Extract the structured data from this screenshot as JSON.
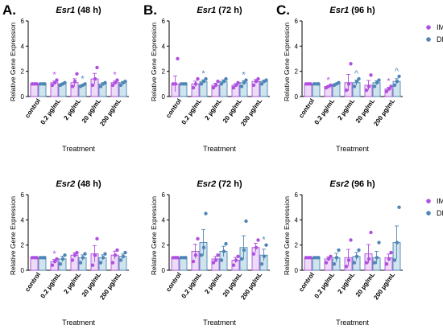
{
  "chart_data": [
    {
      "type": "bar",
      "panel_letter": "A.",
      "gene": "Esr1",
      "time": "(48 h)",
      "categories": [
        "control",
        "0.2 µg/mL",
        "2 µg/mL",
        "20 µg/mL",
        "200 µg/mL"
      ],
      "xlabel": "Treatment",
      "ylabel": "Relative Gene Expression",
      "ylim": [
        0,
        6
      ],
      "yticks": [
        0,
        2,
        4,
        6
      ],
      "series": [
        {
          "name": "IMI",
          "values": [
            1.0,
            1.1,
            1.1,
            1.4,
            1.1
          ],
          "points": [
            [
              1.0,
              1.0,
              1.0
            ],
            [
              0.9,
              1.1,
              1.3
            ],
            [
              0.8,
              1.2,
              1.8
            ],
            [
              0.9,
              1.4,
              2.3
            ],
            [
              0.9,
              1.1,
              1.3
            ]
          ],
          "sig": [
            "",
            "*",
            "",
            "",
            "*"
          ]
        },
        {
          "name": "DNI",
          "values": [
            1.0,
            1.0,
            0.9,
            1.0,
            1.1
          ],
          "points": [
            [
              1.0,
              1.0,
              1.0
            ],
            [
              0.9,
              1.0,
              1.1
            ],
            [
              0.8,
              0.9,
              1.0
            ],
            [
              0.8,
              1.0,
              1.1
            ],
            [
              0.9,
              1.1,
              1.2
            ]
          ],
          "sig": [
            "",
            "",
            "*",
            "",
            ""
          ]
        }
      ]
    },
    {
      "type": "bar",
      "panel_letter": "B.",
      "gene": "Esr1",
      "time": "(72 h)",
      "categories": [
        "control",
        "0.2 µg/mL",
        "2 µg/mL",
        "20 µg/mL",
        "200 µg/mL"
      ],
      "xlabel": "Treatment",
      "ylabel": "Relative Gene Expression",
      "ylim": [
        0,
        6
      ],
      "yticks": [
        0,
        2,
        4,
        6
      ],
      "series": [
        {
          "name": "IMI",
          "values": [
            1.0,
            1.0,
            0.9,
            0.9,
            1.2
          ],
          "points": [
            [
              1.0,
              1.0,
              3.0
            ],
            [
              0.7,
              1.0,
              1.4
            ],
            [
              0.7,
              0.9,
              1.2
            ],
            [
              0.7,
              0.9,
              1.1
            ],
            [
              0.9,
              1.2,
              1.4
            ]
          ],
          "sig": [
            "",
            "",
            "",
            "",
            ""
          ]
        },
        {
          "name": "DNI",
          "values": [
            1.0,
            1.2,
            1.2,
            1.1,
            1.2
          ],
          "points": [
            [
              1.0,
              1.0,
              1.0
            ],
            [
              1.0,
              1.2,
              1.4
            ],
            [
              1.0,
              1.2,
              1.4
            ],
            [
              0.8,
              1.1,
              1.3
            ],
            [
              1.0,
              1.2,
              1.3
            ]
          ],
          "sig": [
            "",
            "*",
            "",
            "*",
            ""
          ]
        }
      ]
    },
    {
      "type": "bar",
      "panel_letter": "C.",
      "gene": "Esr1",
      "time": "(96 h)",
      "categories": [
        "control",
        "0.2 µg/mL",
        "2 µg/mL",
        "20 µg/mL",
        "200 µg/mL"
      ],
      "xlabel": "Treatment",
      "ylabel": "Relative Gene Expression",
      "ylim": [
        0,
        6
      ],
      "yticks": [
        0,
        2,
        4,
        6
      ],
      "legend": [
        "IMI",
        "DNI"
      ],
      "series": [
        {
          "name": "IMI",
          "values": [
            1.0,
            0.8,
            1.1,
            0.9,
            0.6
          ],
          "points": [
            [
              1.0,
              1.0,
              1.0
            ],
            [
              0.7,
              0.8,
              0.9
            ],
            [
              0.5,
              1.0,
              2.6
            ],
            [
              0.5,
              0.8,
              1.7
            ],
            [
              0.4,
              0.6,
              0.8
            ]
          ],
          "sig": [
            "",
            "*",
            "",
            "",
            "*"
          ]
        },
        {
          "name": "DNI",
          "values": [
            1.0,
            1.0,
            1.1,
            1.1,
            1.2
          ],
          "points": [
            [
              1.0,
              1.0,
              1.0
            ],
            [
              0.9,
              1.0,
              1.1
            ],
            [
              0.8,
              1.2,
              1.4
            ],
            [
              0.8,
              1.1,
              1.3
            ],
            [
              0.9,
              1.2,
              1.6
            ]
          ],
          "sig": [
            "",
            "",
            "^",
            "",
            "^"
          ]
        }
      ]
    },
    {
      "type": "bar",
      "panel_letter": "",
      "gene": "Esr2",
      "time": "(48 h)",
      "categories": [
        "control",
        "0.2 µg/mL",
        "2 µg/mL",
        "20 µg/mL",
        "200 µg/mL"
      ],
      "xlabel": "Treatment",
      "ylabel": "Relative Gene Expression",
      "ylim": [
        0,
        6
      ],
      "yticks": [
        0,
        2,
        4,
        6
      ],
      "series": [
        {
          "name": "IMI",
          "values": [
            1.0,
            0.7,
            1.2,
            1.3,
            1.2
          ],
          "points": [
            [
              1.0,
              1.0,
              1.0
            ],
            [
              0.4,
              0.7,
              0.9
            ],
            [
              0.8,
              1.2,
              1.4
            ],
            [
              0.4,
              1.2,
              2.5
            ],
            [
              0.6,
              1.2,
              1.6
            ]
          ],
          "sig": [
            "",
            "*",
            "",
            "",
            ""
          ]
        },
        {
          "name": "DNI",
          "values": [
            1.0,
            0.9,
            1.0,
            1.0,
            1.1
          ],
          "points": [
            [
              1.0,
              1.0,
              1.0
            ],
            [
              0.5,
              0.9,
              1.2
            ],
            [
              0.6,
              1.0,
              1.3
            ],
            [
              0.6,
              1.0,
              1.3
            ],
            [
              0.8,
              1.1,
              1.4
            ]
          ],
          "sig": [
            "",
            "",
            "",
            "",
            ""
          ]
        }
      ]
    },
    {
      "type": "bar",
      "panel_letter": "",
      "gene": "Esr2",
      "time": "(72 h)",
      "categories": [
        "control",
        "0.2 µg/mL",
        "2 µg/mL",
        "20 µg/mL",
        "200 µg/mL"
      ],
      "xlabel": "Treatment",
      "ylabel": "Relative Gene Expression",
      "ylim": [
        0,
        6
      ],
      "yticks": [
        0,
        2,
        4,
        6
      ],
      "series": [
        {
          "name": "IMI",
          "values": [
            1.0,
            1.5,
            0.9,
            0.8,
            1.8
          ],
          "points": [
            [
              1.0,
              1.0,
              1.0
            ],
            [
              0.7,
              1.2,
              2.5
            ],
            [
              0.6,
              0.8,
              1.2
            ],
            [
              0.4,
              0.8,
              1.1
            ],
            [
              1.3,
              1.8,
              2.4
            ]
          ],
          "sig": [
            "",
            "",
            "",
            "",
            ""
          ]
        },
        {
          "name": "DNI",
          "values": [
            1.0,
            2.2,
            1.5,
            1.8,
            1.2
          ],
          "points": [
            [
              1.0,
              1.0,
              1.0
            ],
            [
              1.2,
              1.8,
              4.5
            ],
            [
              0.8,
              1.5,
              2.1
            ],
            [
              0.9,
              1.6,
              3.9
            ],
            [
              0.5,
              1.1,
              2.0
            ]
          ],
          "sig": [
            "",
            "",
            "",
            "",
            "*"
          ]
        }
      ]
    },
    {
      "type": "bar",
      "panel_letter": "",
      "gene": "Esr2",
      "time": "(96 h)",
      "categories": [
        "control",
        "0.2 µg/mL",
        "2 µg/mL",
        "20 µg/mL",
        "200 µg/mL"
      ],
      "xlabel": "Treatment",
      "ylabel": "Relative Gene Expression",
      "ylim": [
        0,
        6
      ],
      "yticks": [
        0,
        2,
        4,
        6
      ],
      "legend": [
        "IMI",
        "DNI"
      ],
      "series": [
        {
          "name": "IMI",
          "values": [
            1.0,
            0.9,
            1.0,
            1.3,
            1.0
          ],
          "points": [
            [
              1.0,
              1.0,
              1.0
            ],
            [
              0.6,
              0.9,
              1.1
            ],
            [
              0.3,
              0.8,
              2.4
            ],
            [
              0.6,
              0.9,
              3.0
            ],
            [
              0.5,
              0.9,
              1.4
            ]
          ],
          "sig": [
            "",
            "",
            "",
            "",
            ""
          ]
        },
        {
          "name": "DNI",
          "values": [
            1.0,
            1.0,
            1.1,
            1.0,
            2.2
          ],
          "points": [
            [
              1.0,
              1.0,
              1.0
            ],
            [
              0.5,
              1.0,
              1.6
            ],
            [
              0.6,
              1.1,
              1.6
            ],
            [
              0.6,
              1.0,
              2.2
            ],
            [
              0.8,
              2.2,
              5.0
            ]
          ],
          "sig": [
            "",
            "",
            "",
            "",
            ""
          ]
        }
      ]
    }
  ],
  "colors": {
    "imi": "#b04fe0",
    "dni": "#4f86b5",
    "imi_fill": "#ecdcf6",
    "dni_fill": "#cfe4ec",
    "axis": "#000000"
  }
}
